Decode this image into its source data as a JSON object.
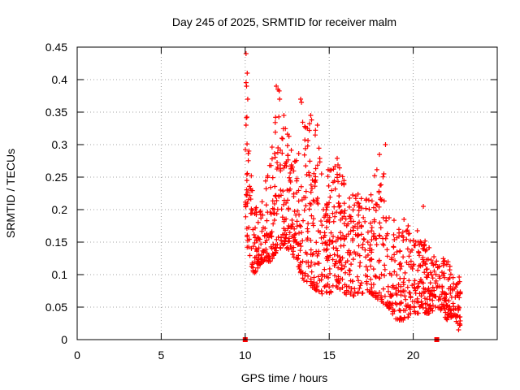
{
  "chart_data": {
    "type": "scatter",
    "title": "Day 245 of 2025, SRMTID for receiver malm",
    "xlabel": "GPS time / hours",
    "ylabel": "SRMTID / TECUs",
    "xlim": [
      0,
      25
    ],
    "ylim": [
      0,
      0.45
    ],
    "xticks": [
      0,
      5,
      10,
      15,
      20
    ],
    "yticks": [
      0,
      0.05,
      0.1,
      0.15,
      0.2,
      0.25,
      0.3,
      0.35,
      0.4,
      0.45
    ],
    "xtick_labels": [
      "0",
      "5",
      "10",
      "15",
      "20"
    ],
    "ytick_labels": [
      "0",
      "0.05",
      "0.1",
      "0.15",
      "0.2",
      "0.25",
      "0.3",
      "0.35",
      "0.4",
      "0.45"
    ],
    "grid": true,
    "marker": "+",
    "marker_color": "#ff0000",
    "zero_markers": [
      {
        "x": 10.0,
        "y": 0
      },
      {
        "x": 21.4,
        "y": 0
      }
    ],
    "series": [
      {
        "name": "SRMTID",
        "profile_note": "dense point cloud; lo/hi bounds per hour bin estimated from figure",
        "x": [
          10.0,
          10.1,
          10.2,
          10.5,
          11.0,
          11.5,
          12.0,
          12.5,
          13.0,
          13.5,
          14.0,
          14.5,
          15.0,
          15.5,
          16.0,
          16.5,
          17.0,
          17.5,
          18.0,
          18.5,
          19.0,
          19.5,
          20.0,
          20.5,
          21.0,
          21.5,
          22.0,
          22.5,
          22.8
        ],
        "lo": [
          0.2,
          0.14,
          0.13,
          0.1,
          0.12,
          0.12,
          0.14,
          0.14,
          0.12,
          0.09,
          0.08,
          0.07,
          0.07,
          0.08,
          0.07,
          0.06,
          0.07,
          0.07,
          0.06,
          0.05,
          0.03,
          0.03,
          0.04,
          0.04,
          0.04,
          0.05,
          0.03,
          0.03,
          0.02
        ],
        "hi": [
          0.44,
          0.41,
          0.3,
          0.22,
          0.22,
          0.28,
          0.39,
          0.32,
          0.3,
          0.37,
          0.34,
          0.3,
          0.26,
          0.28,
          0.24,
          0.23,
          0.22,
          0.25,
          0.3,
          0.19,
          0.19,
          0.16,
          0.2,
          0.16,
          0.15,
          0.12,
          0.13,
          0.12,
          0.1
        ],
        "spikes": [
          {
            "x": 10.05,
            "y": 0.44
          },
          {
            "x": 10.12,
            "y": 0.41
          },
          {
            "x": 10.08,
            "y": 0.39
          },
          {
            "x": 10.15,
            "y": 0.37
          },
          {
            "x": 10.05,
            "y": 0.33
          },
          {
            "x": 11.85,
            "y": 0.39
          },
          {
            "x": 11.95,
            "y": 0.385
          },
          {
            "x": 12.05,
            "y": 0.37
          },
          {
            "x": 13.3,
            "y": 0.37
          },
          {
            "x": 13.35,
            "y": 0.365
          },
          {
            "x": 13.9,
            "y": 0.345
          },
          {
            "x": 14.3,
            "y": 0.33
          },
          {
            "x": 18.35,
            "y": 0.3
          },
          {
            "x": 18.25,
            "y": 0.255
          },
          {
            "x": 20.6,
            "y": 0.205
          },
          {
            "x": 19.45,
            "y": 0.185
          },
          {
            "x": 22.7,
            "y": 0.015
          }
        ]
      }
    ]
  }
}
